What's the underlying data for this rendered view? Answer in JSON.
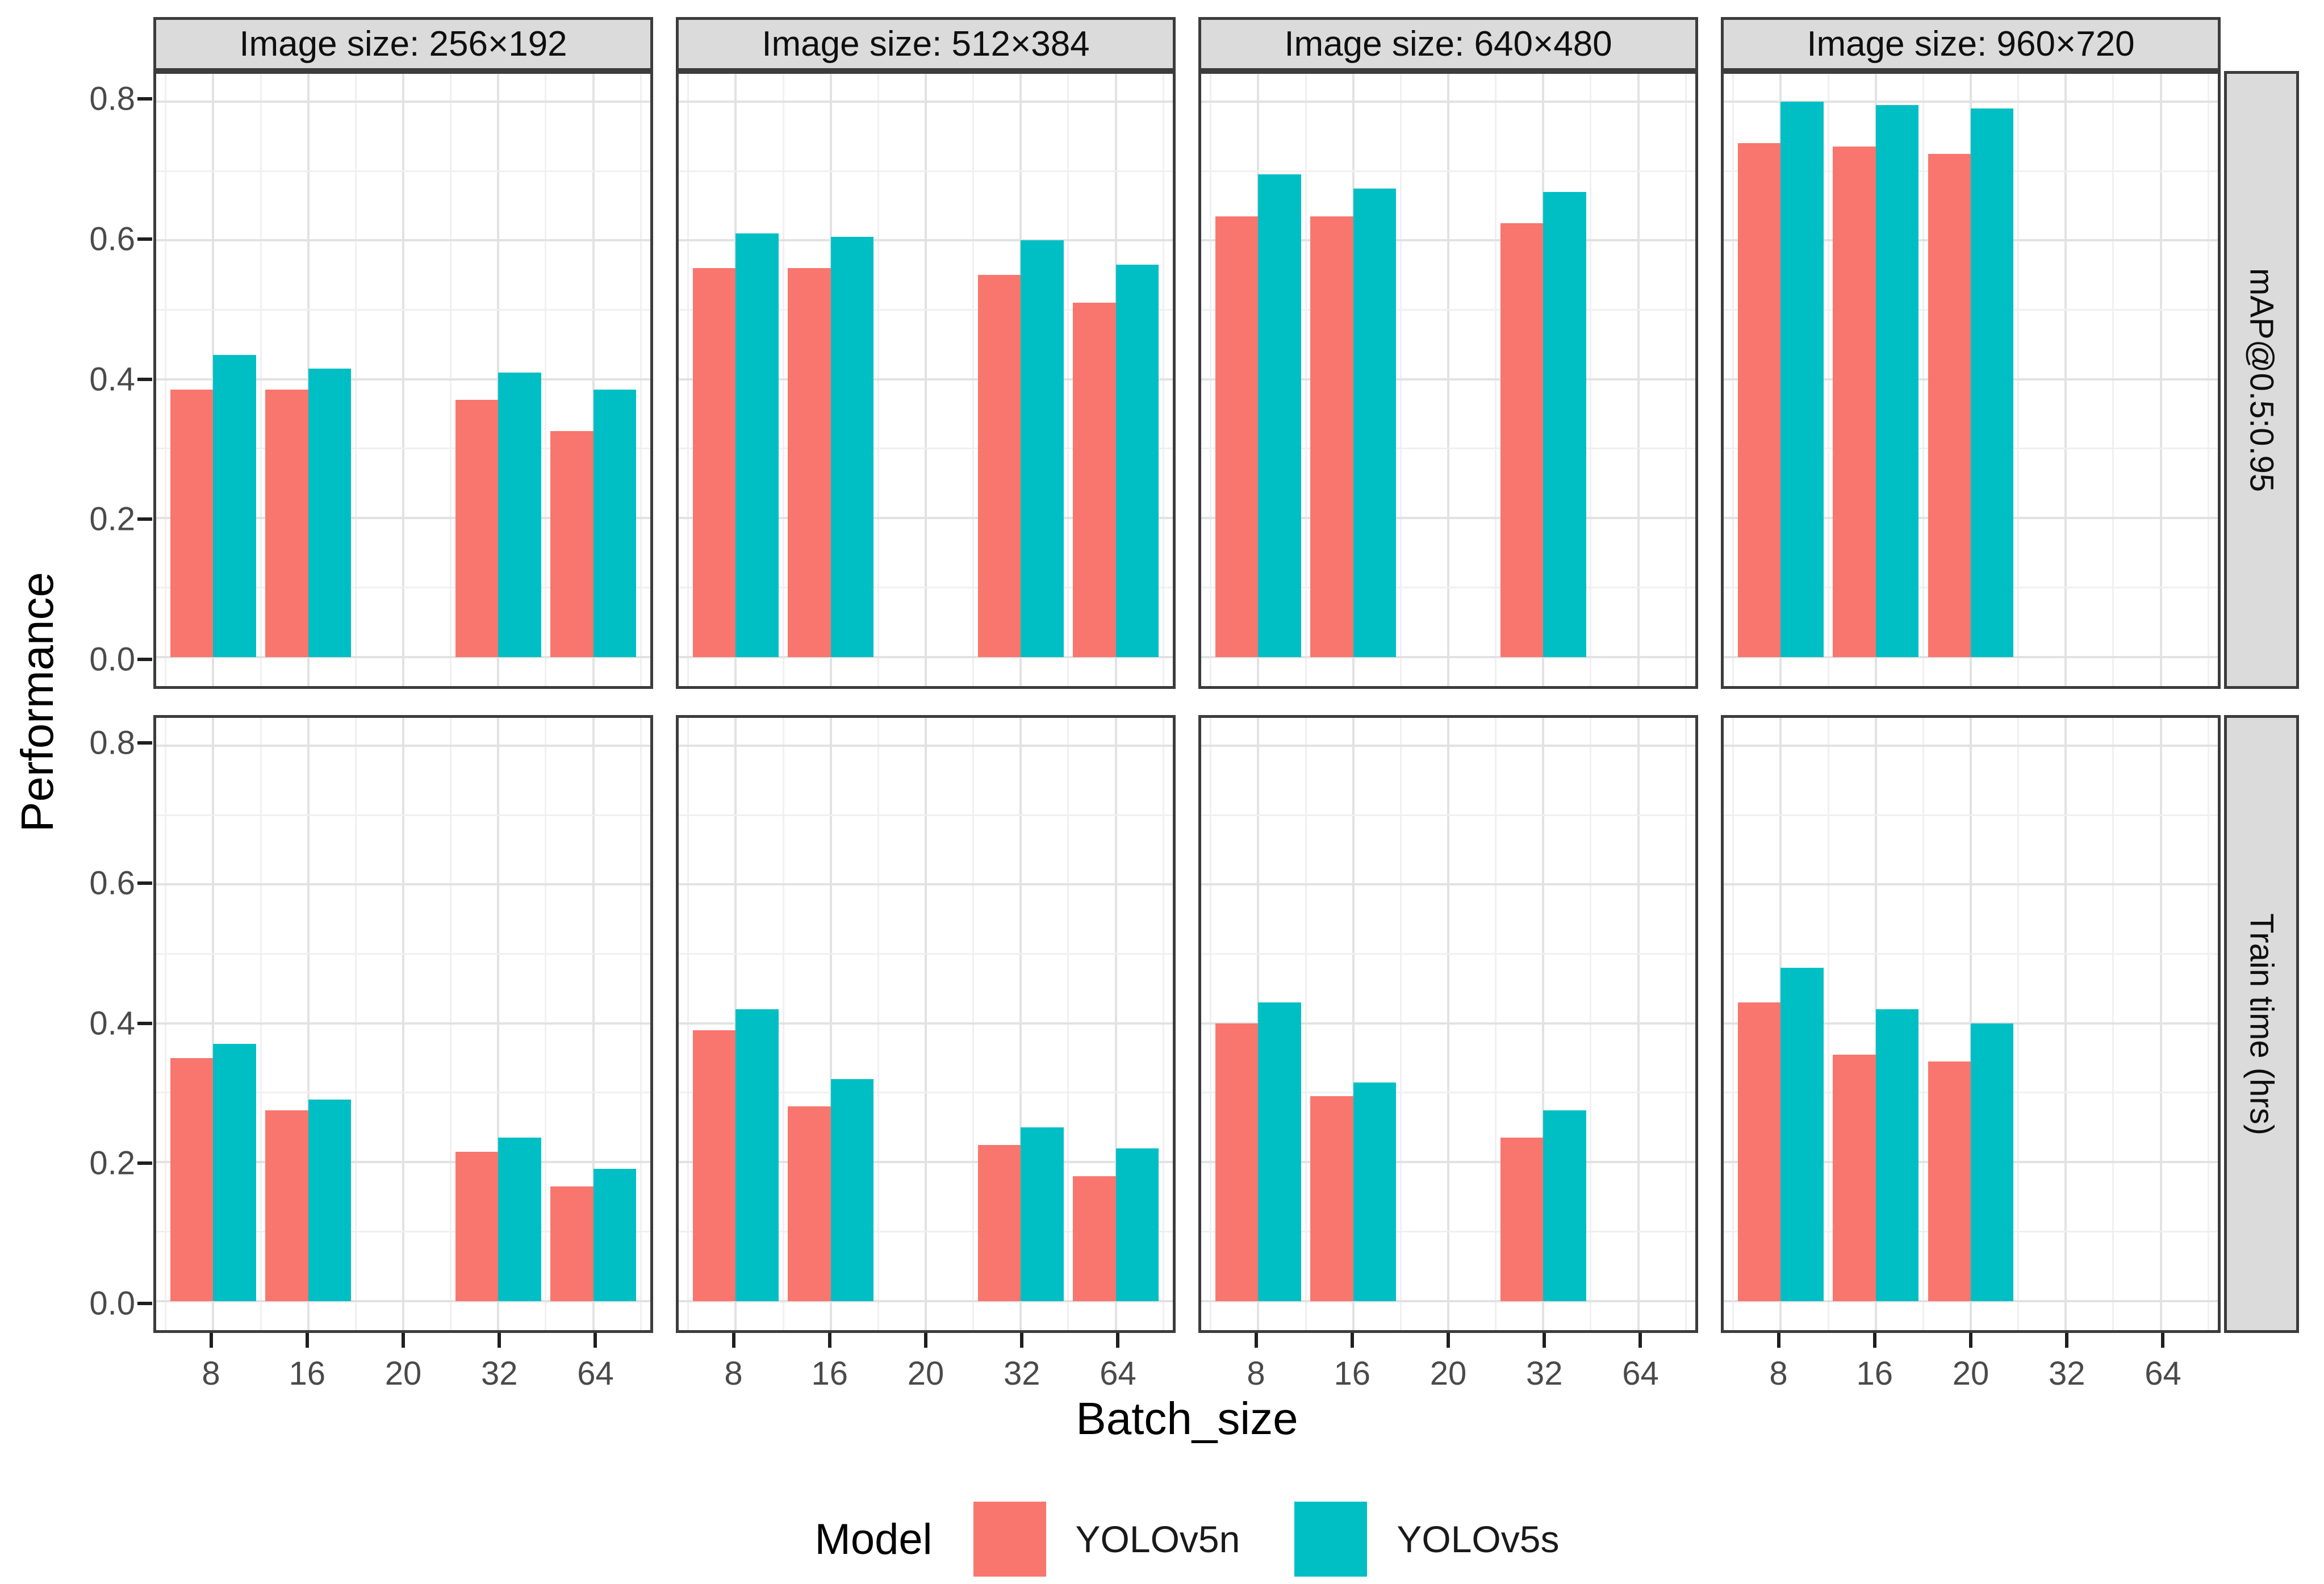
{
  "chart_data": {
    "type": "bar",
    "title": "",
    "xlabel": "Batch_size",
    "ylabel": "Performance",
    "legend_title": "Model",
    "legend_position": "bottom",
    "grid": true,
    "series": [
      {
        "name": "YOLOv5n",
        "color": "#F8766D"
      },
      {
        "name": "YOLOv5s",
        "color": "#00BFC4"
      }
    ],
    "x_categories": [
      "8",
      "16",
      "20",
      "32",
      "64"
    ],
    "y_ticks": [
      "0.0",
      "0.2",
      "0.4",
      "0.6",
      "0.8"
    ],
    "ylim": [
      -0.042,
      0.84
    ],
    "facet_cols": [
      "Image size: 256×192",
      "Image size: 512×384",
      "Image size: 640×480",
      "Image size: 960×720"
    ],
    "facet_rows": [
      "mAP@0.5:0.95",
      "Train time (hrs)"
    ],
    "panels": [
      {
        "row": "mAP@0.5:0.95",
        "col": "Image size: 256×192",
        "values": {
          "YOLOv5n": [
            0.385,
            0.385,
            null,
            0.37,
            0.325
          ],
          "YOLOv5s": [
            0.435,
            0.415,
            null,
            0.41,
            0.385
          ]
        }
      },
      {
        "row": "mAP@0.5:0.95",
        "col": "Image size: 512×384",
        "values": {
          "YOLOv5n": [
            0.56,
            0.56,
            null,
            0.55,
            0.51
          ],
          "YOLOv5s": [
            0.61,
            0.605,
            null,
            0.6,
            0.565
          ]
        }
      },
      {
        "row": "mAP@0.5:0.95",
        "col": "Image size: 640×480",
        "values": {
          "YOLOv5n": [
            0.635,
            0.635,
            null,
            0.625,
            null
          ],
          "YOLOv5s": [
            0.695,
            0.675,
            null,
            0.67,
            null
          ]
        }
      },
      {
        "row": "mAP@0.5:0.95",
        "col": "Image size: 960×720",
        "values": {
          "YOLOv5n": [
            0.74,
            0.735,
            0.725,
            null,
            null
          ],
          "YOLOv5s": [
            0.8,
            0.795,
            0.79,
            null,
            null
          ]
        }
      },
      {
        "row": "Train time (hrs)",
        "col": "Image size: 256×192",
        "values": {
          "YOLOv5n": [
            0.35,
            0.275,
            null,
            0.215,
            0.165
          ],
          "YOLOv5s": [
            0.37,
            0.29,
            null,
            0.235,
            0.19
          ]
        }
      },
      {
        "row": "Train time (hrs)",
        "col": "Image size: 512×384",
        "values": {
          "YOLOv5n": [
            0.39,
            0.28,
            null,
            0.225,
            0.18
          ],
          "YOLOv5s": [
            0.42,
            0.32,
            null,
            0.25,
            0.22
          ]
        }
      },
      {
        "row": "Train time (hrs)",
        "col": "Image size: 640×480",
        "values": {
          "YOLOv5n": [
            0.4,
            0.295,
            null,
            0.235,
            null
          ],
          "YOLOv5s": [
            0.43,
            0.315,
            null,
            0.275,
            null
          ]
        }
      },
      {
        "row": "Train time (hrs)",
        "col": "Image size: 960×720",
        "values": {
          "YOLOv5n": [
            0.43,
            0.355,
            0.345,
            null,
            null
          ],
          "YOLOv5s": [
            0.48,
            0.42,
            0.4,
            null,
            null
          ]
        }
      }
    ],
    "colors": {
      "strip_background": "#DBDBDB",
      "panel_border": "#3C3C3C",
      "grid_major": "#E2E2E2",
      "grid_minor": "#F0F0F0",
      "axis_text": "#4A4A4A",
      "tick_mark": "#1F1F1F"
    }
  }
}
